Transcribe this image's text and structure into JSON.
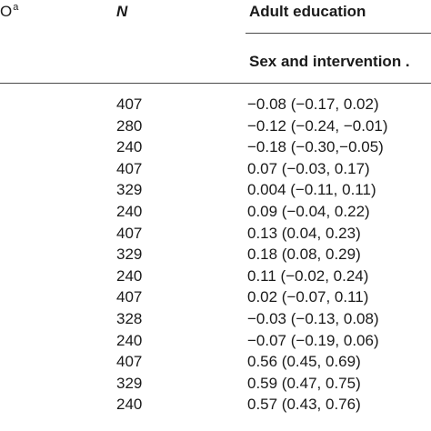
{
  "header": {
    "left_fragment": "O",
    "left_superscript": "a",
    "n_label": "N",
    "group_title": "Adult education",
    "subheader": "Sex and intervention ."
  },
  "rows": [
    {
      "n": "407",
      "value": "−0.08 (−0.17, 0.02)"
    },
    {
      "n": "280",
      "value": "−0.12 (−0.24, −0.01)"
    },
    {
      "n": "240",
      "value": "−0.18 (−0.30,−0.05)"
    },
    {
      "n": "407",
      "value": "0.07 (−0.03, 0.17)"
    },
    {
      "n": "329",
      "value": "0.004 (−0.11, 0.11)"
    },
    {
      "n": "240",
      "value": "0.09 (−0.04, 0.22)"
    },
    {
      "n": "407",
      "value": "0.13 (0.04, 0.23)"
    },
    {
      "n": "329",
      "value": "0.18 (0.08, 0.29)"
    },
    {
      "n": "240",
      "value": "0.11 (−0.02, 0.24)"
    },
    {
      "n": "407",
      "value": "0.02 (−0.07, 0.11)"
    },
    {
      "n": "328",
      "value": "−0.03 (−0.13, 0.08)"
    },
    {
      "n": "240",
      "value": "−0.07 (−0.19, 0.06)"
    },
    {
      "n": "407",
      "value": "0.56 (0.45, 0.69)"
    },
    {
      "n": "329",
      "value": "0.59 (0.47, 0.75)"
    },
    {
      "n": "240",
      "value": "0.57 (0.43, 0.76)"
    }
  ]
}
